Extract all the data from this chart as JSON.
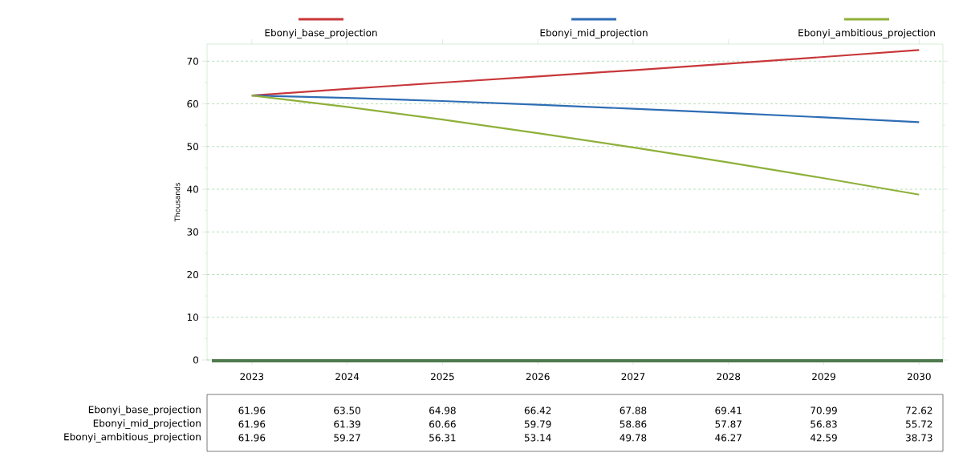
{
  "chart_data": {
    "type": "line",
    "ylabel": "Thousands",
    "categories": [
      "2023",
      "2024",
      "2025",
      "2026",
      "2027",
      "2028",
      "2029",
      "2030"
    ],
    "series": [
      {
        "name": "Ebonyi_base_projection",
        "color": "#c8373a",
        "values": [
          61.96,
          63.5,
          64.98,
          66.42,
          67.88,
          69.41,
          70.99,
          72.62
        ],
        "value_labels": [
          "61.96",
          "63.50",
          "64.98",
          "66.42",
          "67.88",
          "69.41",
          "70.99",
          "72.62"
        ]
      },
      {
        "name": "Ebonyi_mid_projection",
        "color": "#2e6db4",
        "values": [
          61.96,
          61.39,
          60.66,
          59.79,
          58.86,
          57.87,
          56.83,
          55.72
        ],
        "value_labels": [
          "61.96",
          "61.39",
          "60.66",
          "59.79",
          "58.86",
          "57.87",
          "56.83",
          "55.72"
        ]
      },
      {
        "name": "Ebonyi_ambitious_projection",
        "color": "#8fb03a",
        "values": [
          61.96,
          59.27,
          56.31,
          53.14,
          49.78,
          46.27,
          42.59,
          38.73
        ],
        "value_labels": [
          "61.96",
          "59.27",
          "56.31",
          "53.14",
          "49.78",
          "46.27",
          "42.59",
          "38.73"
        ]
      }
    ],
    "ylim": [
      0,
      74
    ],
    "yticks": [
      0,
      10,
      20,
      30,
      40,
      50,
      60,
      70
    ],
    "grid": "y",
    "legend": "top",
    "marker": "none",
    "line_style": "solid"
  }
}
